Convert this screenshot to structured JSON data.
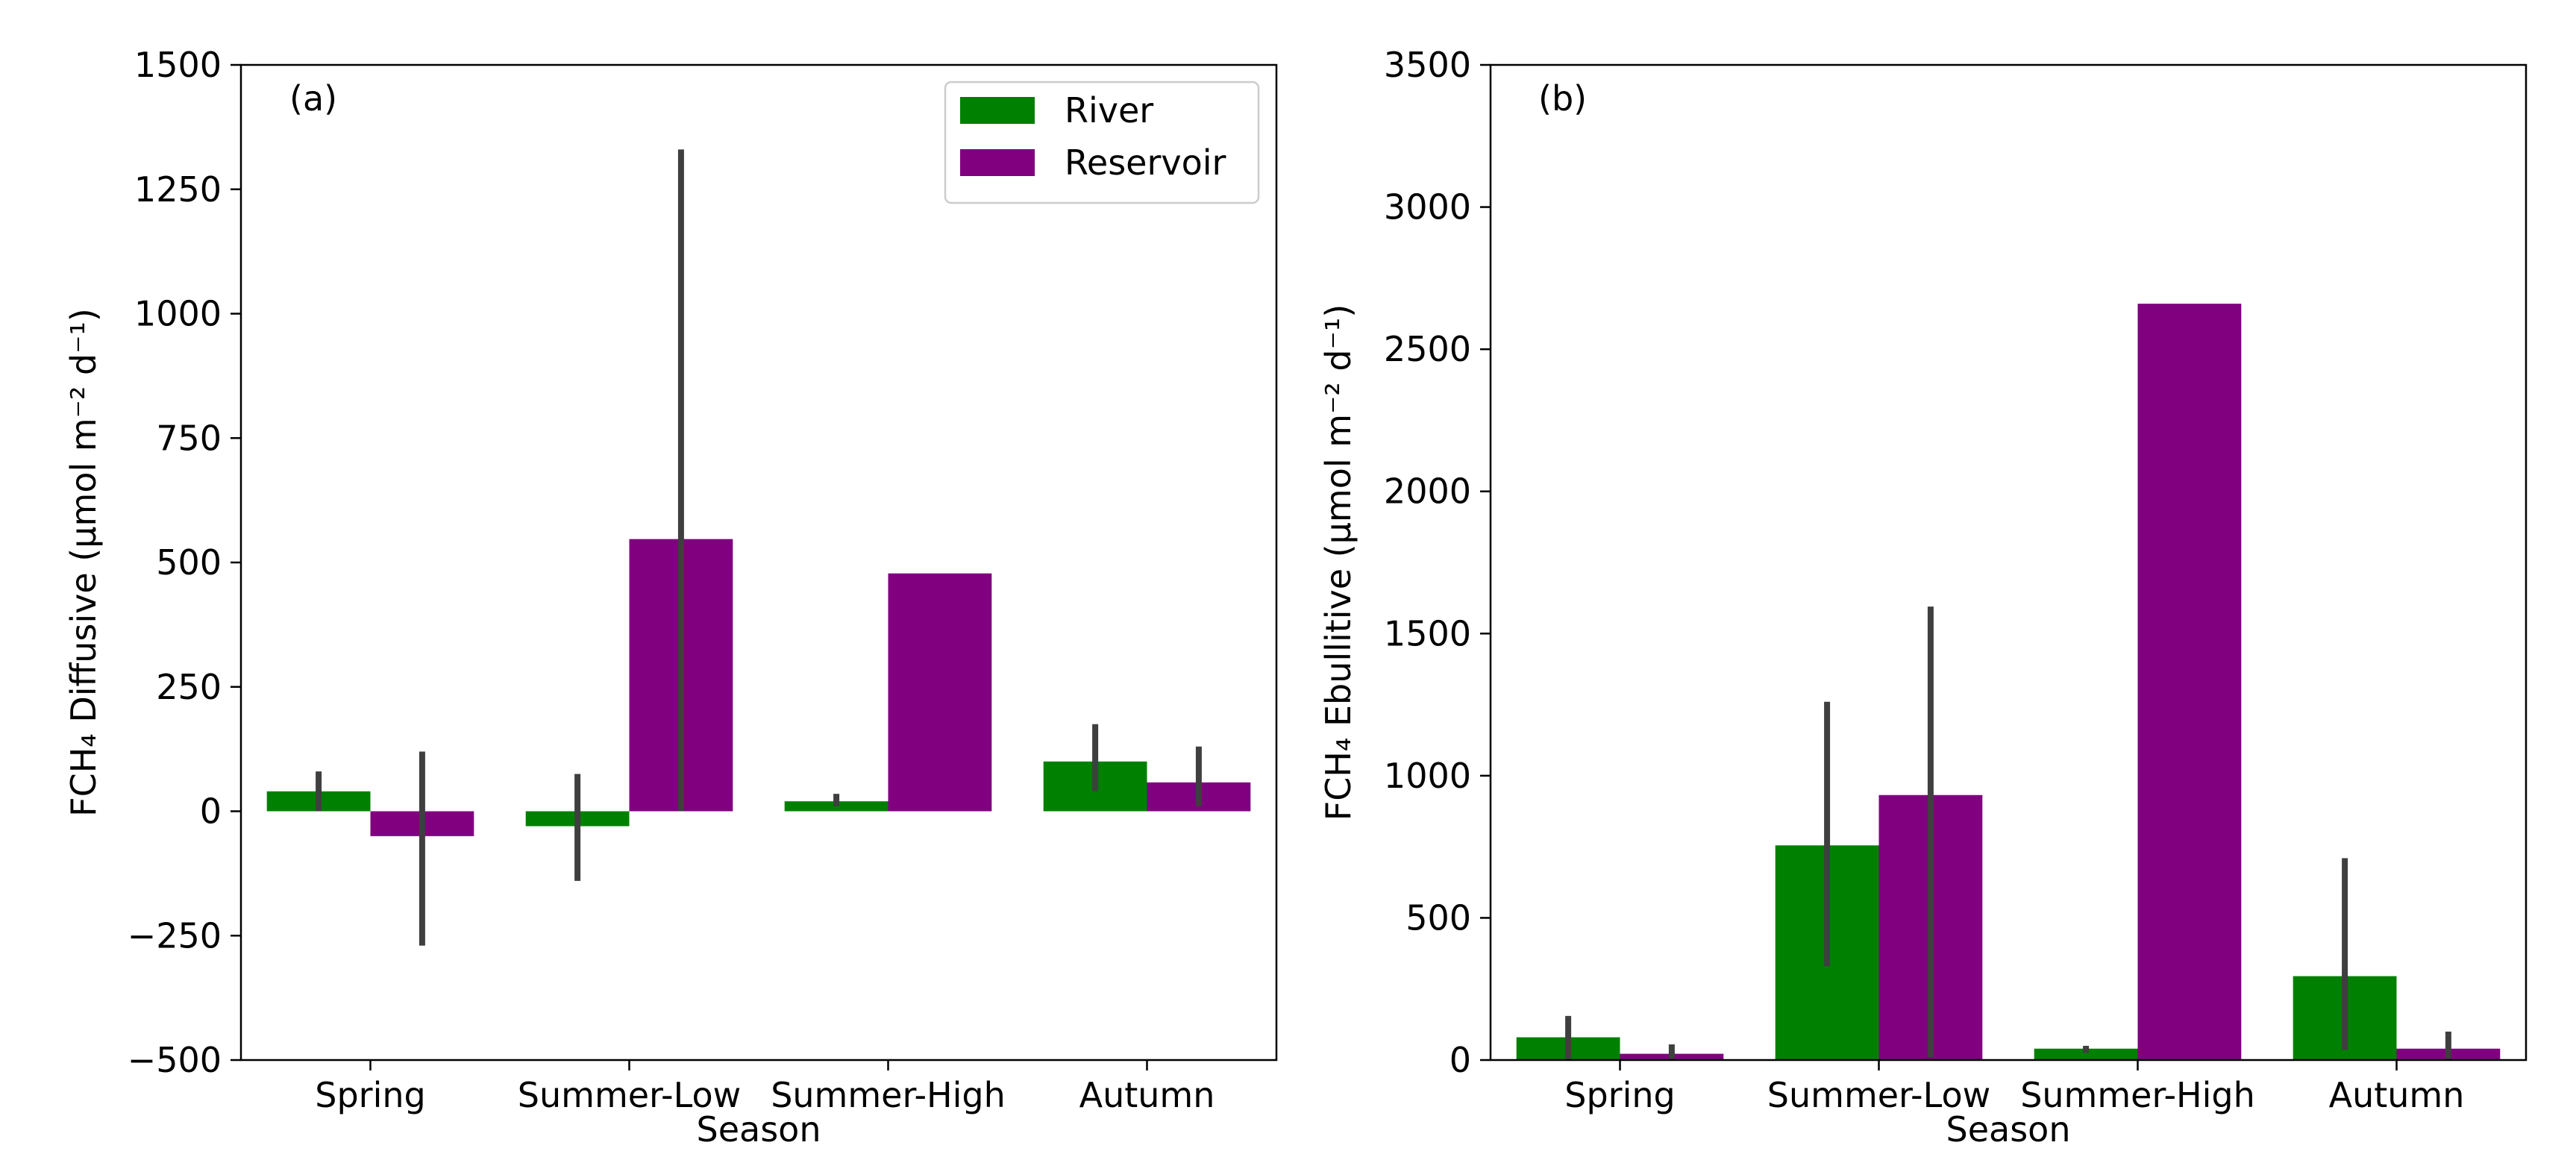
{
  "colors": {
    "river": "#008000",
    "reservoir": "#800080",
    "errorbar": "#3f3f3f"
  },
  "chart_data": [
    {
      "type": "bar",
      "panel_label": "(a)",
      "title": "",
      "xlabel": "Season",
      "ylabel": "FCH₄ Diffusive (μmol m⁻² d⁻¹)",
      "categories": [
        "Spring",
        "Summer-Low",
        "Summer-High",
        "Autumn"
      ],
      "ylim": [
        -500,
        1500
      ],
      "yticks": [
        -500,
        -250,
        0,
        250,
        500,
        750,
        1000,
        1250,
        1500
      ],
      "ytick_labels": [
        "−500",
        "−250",
        "0",
        "250",
        "500",
        "750",
        "1000",
        "1250",
        "1500"
      ],
      "legend": {
        "position": "top-right",
        "entries": [
          "River",
          "Reservoir"
        ]
      },
      "series": [
        {
          "name": "River",
          "color": "#008000",
          "values": [
            40,
            -30,
            20,
            100
          ],
          "err_low": [
            0,
            -140,
            10,
            40
          ],
          "err_high": [
            80,
            75,
            35,
            175
          ]
        },
        {
          "name": "Reservoir",
          "color": "#800080",
          "values": [
            -50,
            547,
            478,
            58
          ],
          "err_low": [
            -270,
            0,
            null,
            10
          ],
          "err_high": [
            120,
            1330,
            null,
            130
          ]
        }
      ]
    },
    {
      "type": "bar",
      "panel_label": "(b)",
      "title": "",
      "xlabel": "Season",
      "ylabel": "FCH₄  Ebullitive  (μmol m⁻² d⁻¹)",
      "categories": [
        "Spring",
        "Summer-Low",
        "Summer-High",
        "Autumn"
      ],
      "ylim": [
        0,
        3500
      ],
      "yticks": [
        0,
        500,
        1000,
        1500,
        2000,
        2500,
        3000,
        3500
      ],
      "ytick_labels": [
        "0",
        "500",
        "1000",
        "1500",
        "2000",
        "2500",
        "3000",
        "3500"
      ],
      "legend": null,
      "series": [
        {
          "name": "River",
          "color": "#008000",
          "values": [
            80,
            755,
            40,
            295
          ],
          "err_low": [
            5,
            330,
            25,
            35
          ],
          "err_high": [
            155,
            1260,
            50,
            710
          ]
        },
        {
          "name": "Reservoir",
          "color": "#800080",
          "values": [
            22,
            932,
            2660,
            40
          ],
          "err_low": [
            5,
            10,
            null,
            5
          ],
          "err_high": [
            55,
            1595,
            null,
            100
          ]
        }
      ]
    }
  ]
}
